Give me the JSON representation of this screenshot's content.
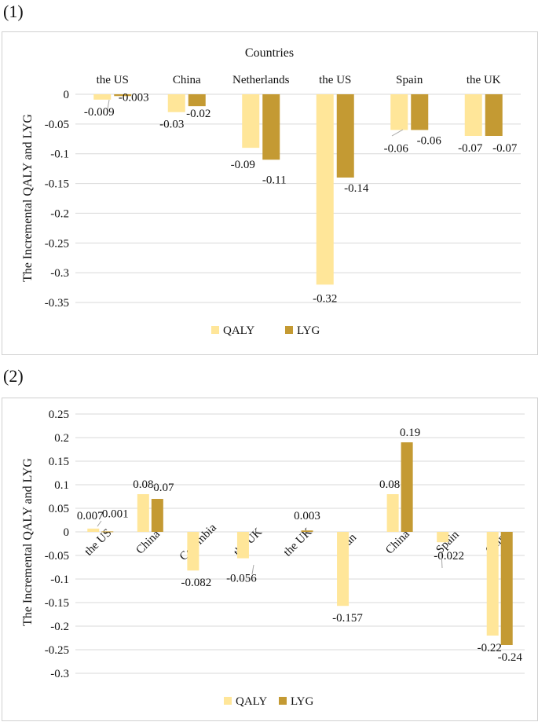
{
  "colors": {
    "qaly": "#FFE699",
    "lyg": "#C49A33",
    "grid": "#d9d9d9",
    "leader": "#a6a6a6"
  },
  "chart_data": [
    {
      "type": "bar",
      "panel_label": "(1)",
      "title": "Countries",
      "ylabel": "The Incremental QALY and LYG",
      "ylim": [
        -0.35,
        0
      ],
      "yticks": [
        "0",
        "-0.05",
        "-0.1",
        "-0.15",
        "-0.2",
        "-0.25",
        "-0.3",
        "-0.35"
      ],
      "ytick_values": [
        0,
        -0.05,
        -0.1,
        -0.15,
        -0.2,
        -0.25,
        -0.3,
        -0.35
      ],
      "categories": [
        "the US",
        "China",
        "Netherlands",
        "the US",
        "Spain",
        "the UK"
      ],
      "series": [
        {
          "name": "QALY",
          "values": [
            -0.009,
            -0.03,
            -0.09,
            -0.32,
            -0.06,
            -0.07
          ],
          "labels": [
            "-0.009",
            "-0.03",
            "-0.09",
            "-0.32",
            "-0.06",
            "-0.07"
          ]
        },
        {
          "name": "LYG",
          "values": [
            -0.003,
            -0.02,
            -0.11,
            -0.14,
            -0.06,
            -0.07
          ],
          "labels": [
            "-0.003",
            "-0.02",
            "-0.11",
            "-0.14",
            "-0.06",
            "-0.07"
          ]
        }
      ],
      "legend": [
        "QALY",
        "LYG"
      ]
    },
    {
      "type": "bar",
      "panel_label": "(2)",
      "title": "",
      "ylabel": "The Incremental QALY and LYG",
      "ylim": [
        -0.3,
        0.25
      ],
      "yticks": [
        "0.25",
        "0.2",
        "0.15",
        "0.1",
        "0.05",
        "0",
        "-0.05",
        "-0.1",
        "-0.15",
        "-0.2",
        "-0.25",
        "-0.3"
      ],
      "ytick_values": [
        0.25,
        0.2,
        0.15,
        0.1,
        0.05,
        0,
        -0.05,
        -0.1,
        -0.15,
        -0.2,
        -0.25,
        -0.3
      ],
      "categories": [
        "the US",
        "China",
        "Colombia",
        "the UK",
        "the UK",
        "Iran",
        "China",
        "Spain",
        "China"
      ],
      "series": [
        {
          "name": "QALY",
          "values": [
            0.007,
            0.08,
            -0.082,
            -0.056,
            null,
            -0.157,
            0.08,
            -0.022,
            -0.22
          ],
          "labels": [
            "0.007",
            "0.08",
            "-0.082",
            "-0.056",
            null,
            "-0.157",
            "0.08",
            "-0.022",
            "-0.22"
          ]
        },
        {
          "name": "LYG",
          "values": [
            0.001,
            0.07,
            null,
            null,
            0.003,
            null,
            0.19,
            null,
            -0.24
          ],
          "labels": [
            "0.001",
            "0.07",
            null,
            null,
            "0.003",
            null,
            "0.19",
            null,
            "-0.24"
          ]
        }
      ],
      "legend": [
        "QALY",
        "LYG"
      ]
    }
  ]
}
